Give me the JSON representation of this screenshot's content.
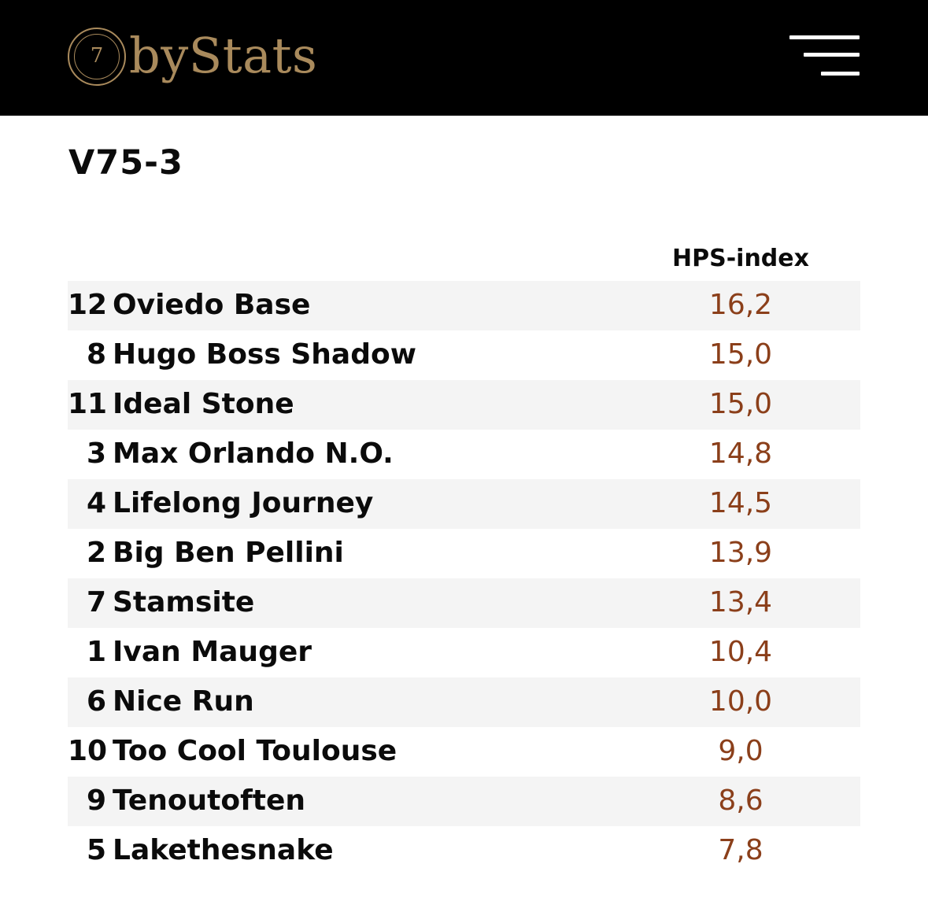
{
  "header": {
    "logo_digit": "7",
    "logo_text": "byStats",
    "menu_icon": "hamburger-menu-icon"
  },
  "race": {
    "title": "V75-3"
  },
  "table": {
    "column_header": "HPS-index",
    "rows": [
      {
        "number": "12",
        "name": "Oviedo Base",
        "hps": "16,2"
      },
      {
        "number": "8",
        "name": "Hugo Boss Shadow",
        "hps": "15,0"
      },
      {
        "number": "11",
        "name": "Ideal Stone",
        "hps": "15,0"
      },
      {
        "number": "3",
        "name": "Max Orlando N.O.",
        "hps": "14,8"
      },
      {
        "number": "4",
        "name": "Lifelong Journey",
        "hps": "14,5"
      },
      {
        "number": "2",
        "name": "Big Ben Pellini",
        "hps": "13,9"
      },
      {
        "number": "7",
        "name": "Stamsite",
        "hps": "13,4"
      },
      {
        "number": "1",
        "name": "Ivan Mauger",
        "hps": "10,4"
      },
      {
        "number": "6",
        "name": "Nice Run",
        "hps": "10,0"
      },
      {
        "number": "10",
        "name": "Too Cool Toulouse",
        "hps": "9,0"
      },
      {
        "number": "9",
        "name": "Tenoutoften",
        "hps": "8,6"
      },
      {
        "number": "5",
        "name": "Lakethesnake",
        "hps": "7,8"
      }
    ]
  },
  "colors": {
    "header_bg": "#000000",
    "logo_gold": "#a98a5c",
    "score_brown": "#8b3f1a",
    "row_shade": "#f4f4f4"
  }
}
